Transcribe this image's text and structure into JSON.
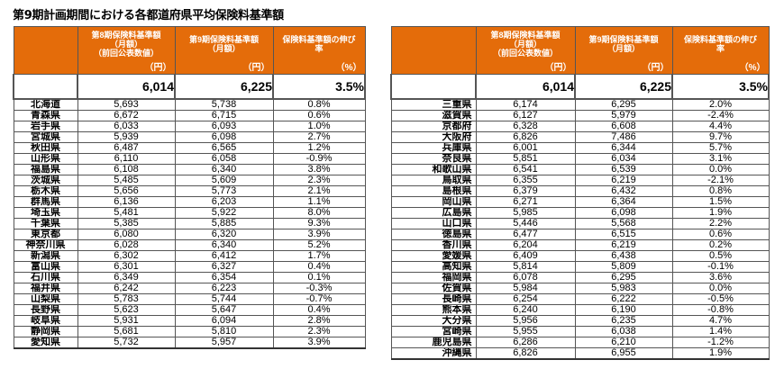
{
  "title": "第9期計画期間における各都道府県平均保険料基準額",
  "colors": {
    "header_bg": "#E46C0A",
    "header_text": "#FFFFFF",
    "border": "#555555"
  },
  "headers": {
    "col1": "",
    "col2_line1": "第8期保険料基準額",
    "col2_line2": "（月額）",
    "col2_line3": "（前回公表数値）",
    "col2_unit": "（円）",
    "col3_line1": "第9期保険料基準額",
    "col3_line2": "（月額）",
    "col3_unit": "（円）",
    "col4_line1": "保険料基準額の伸び",
    "col4_line2": "率",
    "col4_unit": "（%）"
  },
  "national_average": {
    "period8": "6,014",
    "period9": "6,225",
    "growth": "3.5%"
  },
  "left_table": [
    {
      "pref": "北海道",
      "p8": "5,693",
      "p9": "5,738",
      "g": "0.8%"
    },
    {
      "pref": "青森県",
      "p8": "6,672",
      "p9": "6,715",
      "g": "0.6%"
    },
    {
      "pref": "岩手県",
      "p8": "6,033",
      "p9": "6,093",
      "g": "1.0%"
    },
    {
      "pref": "宮城県",
      "p8": "5,939",
      "p9": "6,098",
      "g": "2.7%"
    },
    {
      "pref": "秋田県",
      "p8": "6,487",
      "p9": "6,565",
      "g": "1.2%"
    },
    {
      "pref": "山形県",
      "p8": "6,110",
      "p9": "6,058",
      "g": "-0.9%"
    },
    {
      "pref": "福島県",
      "p8": "6,108",
      "p9": "6,340",
      "g": "3.8%"
    },
    {
      "pref": "茨城県",
      "p8": "5,485",
      "p9": "5,609",
      "g": "2.3%"
    },
    {
      "pref": "栃木県",
      "p8": "5,656",
      "p9": "5,773",
      "g": "2.1%"
    },
    {
      "pref": "群馬県",
      "p8": "6,136",
      "p9": "6,203",
      "g": "1.1%"
    },
    {
      "pref": "埼玉県",
      "p8": "5,481",
      "p9": "5,922",
      "g": "8.0%"
    },
    {
      "pref": "千葉県",
      "p8": "5,385",
      "p9": "5,885",
      "g": "9.3%"
    },
    {
      "pref": "東京都",
      "p8": "6,080",
      "p9": "6,320",
      "g": "3.9%"
    },
    {
      "pref": "神奈川県",
      "p8": "6,028",
      "p9": "6,340",
      "g": "5.2%"
    },
    {
      "pref": "新潟県",
      "p8": "6,302",
      "p9": "6,412",
      "g": "1.7%"
    },
    {
      "pref": "富山県",
      "p8": "6,301",
      "p9": "6,327",
      "g": "0.4%"
    },
    {
      "pref": "石川県",
      "p8": "6,349",
      "p9": "6,354",
      "g": "0.1%"
    },
    {
      "pref": "福井県",
      "p8": "6,242",
      "p9": "6,223",
      "g": "-0.3%"
    },
    {
      "pref": "山梨県",
      "p8": "5,783",
      "p9": "5,744",
      "g": "-0.7%"
    },
    {
      "pref": "長野県",
      "p8": "5,623",
      "p9": "5,647",
      "g": "0.4%"
    },
    {
      "pref": "岐阜県",
      "p8": "5,931",
      "p9": "6,094",
      "g": "2.8%"
    },
    {
      "pref": "静岡県",
      "p8": "5,681",
      "p9": "5,810",
      "g": "2.3%"
    },
    {
      "pref": "愛知県",
      "p8": "5,732",
      "p9": "5,957",
      "g": "3.9%"
    }
  ],
  "right_table": [
    {
      "pref": "三重県",
      "p8": "6,174",
      "p9": "6,295",
      "g": "2.0%"
    },
    {
      "pref": "滋賀県",
      "p8": "6,127",
      "p9": "5,979",
      "g": "-2.4%"
    },
    {
      "pref": "京都府",
      "p8": "6,328",
      "p9": "6,608",
      "g": "4.4%"
    },
    {
      "pref": "大阪府",
      "p8": "6,826",
      "p9": "7,486",
      "g": "9.7%"
    },
    {
      "pref": "兵庫県",
      "p8": "6,001",
      "p9": "6,344",
      "g": "5.7%"
    },
    {
      "pref": "奈良県",
      "p8": "5,851",
      "p9": "6,034",
      "g": "3.1%"
    },
    {
      "pref": "和歌山県",
      "p8": "6,541",
      "p9": "6,539",
      "g": "0.0%"
    },
    {
      "pref": "鳥取県",
      "p8": "6,355",
      "p9": "6,219",
      "g": "-2.1%"
    },
    {
      "pref": "島根県",
      "p8": "6,379",
      "p9": "6,432",
      "g": "0.8%"
    },
    {
      "pref": "岡山県",
      "p8": "6,271",
      "p9": "6,364",
      "g": "1.5%"
    },
    {
      "pref": "広島県",
      "p8": "5,985",
      "p9": "6,098",
      "g": "1.9%"
    },
    {
      "pref": "山口県",
      "p8": "5,446",
      "p9": "5,568",
      "g": "2.2%"
    },
    {
      "pref": "徳島県",
      "p8": "6,477",
      "p9": "6,515",
      "g": "0.6%"
    },
    {
      "pref": "香川県",
      "p8": "6,204",
      "p9": "6,219",
      "g": "0.2%"
    },
    {
      "pref": "愛媛県",
      "p8": "6,409",
      "p9": "6,438",
      "g": "0.5%"
    },
    {
      "pref": "高知県",
      "p8": "5,814",
      "p9": "5,809",
      "g": "-0.1%"
    },
    {
      "pref": "福岡県",
      "p8": "6,078",
      "p9": "6,295",
      "g": "3.6%"
    },
    {
      "pref": "佐賀県",
      "p8": "5,984",
      "p9": "5,983",
      "g": "0.0%"
    },
    {
      "pref": "長崎県",
      "p8": "6,254",
      "p9": "6,222",
      "g": "-0.5%"
    },
    {
      "pref": "熊本県",
      "p8": "6,240",
      "p9": "6,190",
      "g": "-0.8%"
    },
    {
      "pref": "大分県",
      "p8": "5,956",
      "p9": "6,235",
      "g": "4.7%"
    },
    {
      "pref": "宮崎県",
      "p8": "5,955",
      "p9": "6,038",
      "g": "1.4%"
    },
    {
      "pref": "鹿児島県",
      "p8": "6,286",
      "p9": "6,210",
      "g": "-1.2%"
    },
    {
      "pref": "沖縄県",
      "p8": "6,826",
      "p9": "6,955",
      "g": "1.9%"
    }
  ]
}
